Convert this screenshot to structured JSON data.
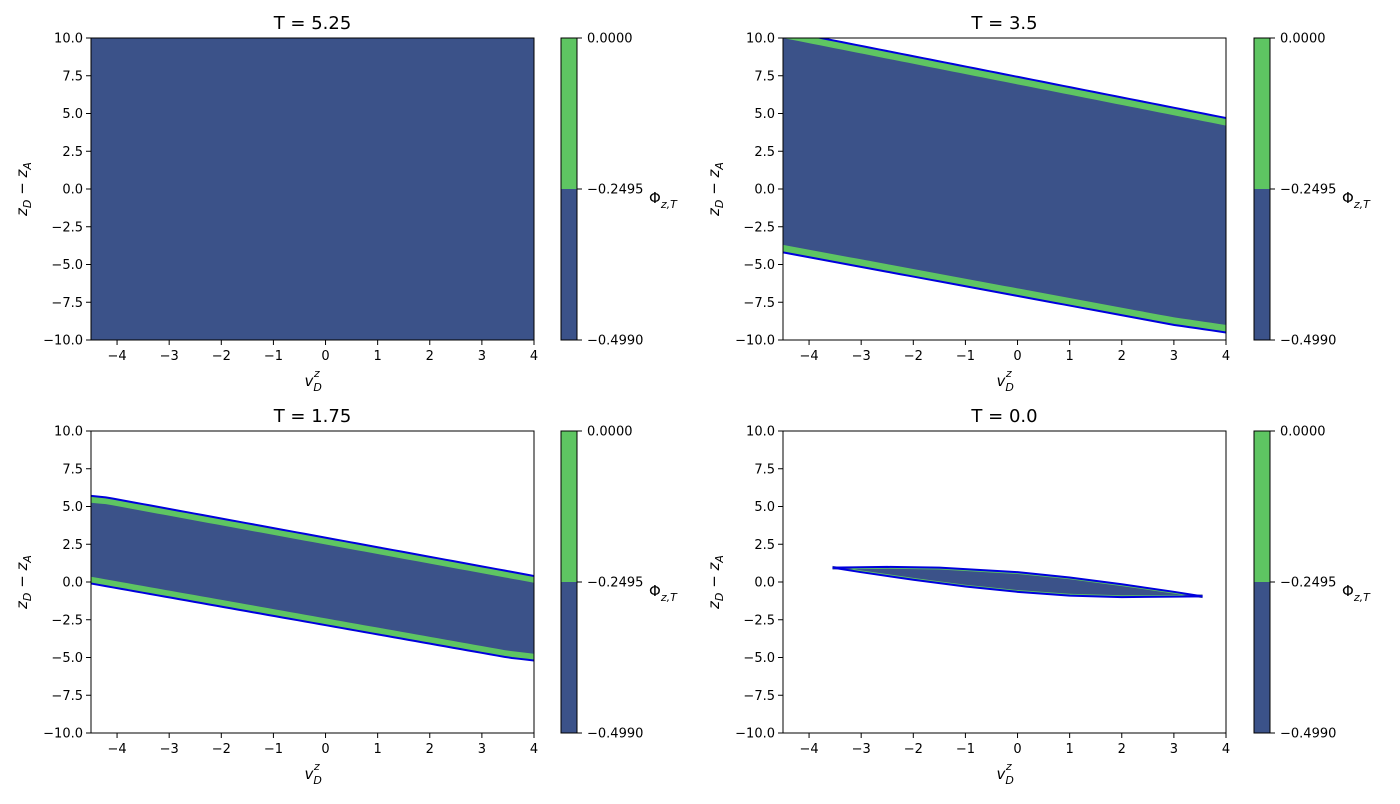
{
  "colors": {
    "low": "#3b5289",
    "high": "#5ec562",
    "boundary": "#0000dd",
    "axis": "#000000"
  },
  "chart_data": [
    {
      "type": "contour",
      "title": "T = 5.25",
      "xlabel": "v_D^z",
      "ylabel": "z_D − z_A",
      "xlim": [
        -4.5,
        4
      ],
      "ylim": [
        -10,
        10
      ],
      "xticks": [
        -4,
        -3,
        -2,
        -1,
        0,
        1,
        2,
        3,
        4
      ],
      "yticks": [
        -10.0,
        -7.5,
        -5.0,
        -2.5,
        0.0,
        2.5,
        5.0,
        7.5,
        10.0
      ],
      "colorbar": {
        "label": "Φ_{z,T}",
        "levels": [
          -0.499,
          -0.2495,
          0.0
        ],
        "ticklabels": [
          "−0.4990",
          "−0.2495",
          "0.0000"
        ]
      },
      "region": "full",
      "boundary": []
    },
    {
      "type": "contour",
      "title": "T = 3.5",
      "xlabel": "v_D^z",
      "ylabel": "z_D − z_A",
      "xlim": [
        -4.5,
        4
      ],
      "ylim": [
        -10,
        10
      ],
      "xticks": [
        -4,
        -3,
        -2,
        -1,
        0,
        1,
        2,
        3,
        4
      ],
      "yticks": [
        -10.0,
        -7.5,
        -5.0,
        -2.5,
        0.0,
        2.5,
        5.0,
        7.5,
        10.0
      ],
      "colorbar": {
        "label": "Φ_{z,T}",
        "levels": [
          -0.499,
          -0.2495,
          0.0
        ],
        "ticklabels": [
          "−0.4990",
          "−0.2495",
          "0.0000"
        ]
      },
      "region": "band",
      "upper_line": [
        [
          -4.5,
          10.5
        ],
        [
          4,
          4.7
        ]
      ],
      "lower_line": [
        [
          -4.5,
          -4.2
        ],
        [
          3.0,
          -9.0
        ],
        [
          4,
          -9.5
        ]
      ],
      "band_width": 0.5,
      "boundary": [
        "upper",
        "lower"
      ]
    },
    {
      "type": "contour",
      "title": "T = 1.75",
      "xlabel": "v_D^z",
      "ylabel": "z_D − z_A",
      "xlim": [
        -4.5,
        4
      ],
      "ylim": [
        -10,
        10
      ],
      "xticks": [
        -4,
        -3,
        -2,
        -1,
        0,
        1,
        2,
        3,
        4
      ],
      "yticks": [
        -10.0,
        -7.5,
        -5.0,
        -2.5,
        0.0,
        2.5,
        5.0,
        7.5,
        10.0
      ],
      "colorbar": {
        "label": "Φ_{z,T}",
        "levels": [
          -0.499,
          -0.2495,
          0.0
        ],
        "ticklabels": [
          "−0.4990",
          "−0.2495",
          "0.0000"
        ]
      },
      "region": "band",
      "upper_line": [
        [
          -4.5,
          5.7
        ],
        [
          -4.2,
          5.6
        ],
        [
          4,
          0.4
        ]
      ],
      "lower_line": [
        [
          -4.5,
          -0.1
        ],
        [
          3.5,
          -5.0
        ],
        [
          4,
          -5.2
        ]
      ],
      "band_width": 0.45,
      "boundary": [
        "upper",
        "lower"
      ]
    },
    {
      "type": "contour",
      "title": "T = 0.0",
      "xlabel": "v_D^z",
      "ylabel": "z_D − z_A",
      "xlim": [
        -4.5,
        4
      ],
      "ylim": [
        -10,
        10
      ],
      "xticks": [
        -4,
        -3,
        -2,
        -1,
        0,
        1,
        2,
        3,
        4
      ],
      "yticks": [
        -10.0,
        -7.5,
        -5.0,
        -2.5,
        0.0,
        2.5,
        5.0,
        7.5,
        10.0
      ],
      "colorbar": {
        "label": "Φ_{z,T}",
        "levels": [
          -0.499,
          -0.2495,
          0.0
        ],
        "ticklabels": [
          "−0.4990",
          "−0.2495",
          "0.0000"
        ]
      },
      "region": "lens",
      "lens_upper": [
        [
          -3.55,
          0.95
        ],
        [
          -2.5,
          1.0
        ],
        [
          -1.5,
          0.95
        ],
        [
          0,
          0.65
        ],
        [
          1,
          0.3
        ],
        [
          2,
          -0.15
        ],
        [
          3,
          -0.65
        ],
        [
          3.55,
          -0.95
        ]
      ],
      "lens_lower": [
        [
          -3.55,
          0.95
        ],
        [
          -3,
          0.65
        ],
        [
          -2,
          0.15
        ],
        [
          -1,
          -0.3
        ],
        [
          0,
          -0.65
        ],
        [
          1,
          -0.9
        ],
        [
          2,
          -1.0
        ],
        [
          3,
          -0.97
        ],
        [
          3.55,
          -0.95
        ]
      ],
      "boundary": [
        "lens"
      ]
    }
  ]
}
